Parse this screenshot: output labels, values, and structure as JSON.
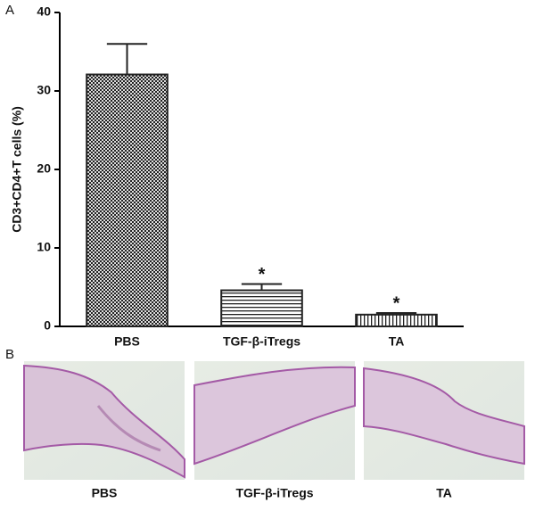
{
  "chart_data": {
    "type": "bar",
    "panel_label": "A",
    "y_label": "CD3+CD4+T cells (%)",
    "categories": [
      "PBS",
      "TGF-β-iTregs",
      "TA"
    ],
    "values": [
      32.1,
      4.6,
      1.5
    ],
    "errors": [
      3.9,
      0.8,
      0.2
    ],
    "significance": [
      null,
      "*",
      "*"
    ],
    "color": "#222222",
    "ylim": [
      0,
      40
    ],
    "yticks": [
      0,
      10,
      20,
      30,
      40
    ],
    "grid": false
  },
  "image_panel": {
    "panel_label": "B",
    "captions": [
      "PBS",
      "TGF-β-iTregs",
      "TA"
    ]
  }
}
